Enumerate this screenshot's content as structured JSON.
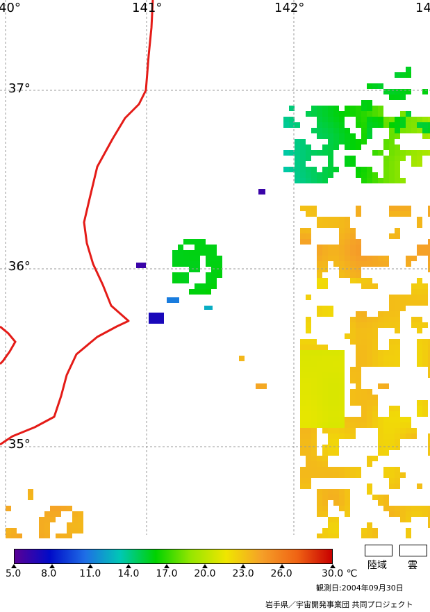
{
  "map": {
    "longitude_labels": [
      {
        "text": "40°",
        "lon": 140.0
      },
      {
        "text": "141°",
        "lon": 141.0
      },
      {
        "text": "142°",
        "lon": 142.0
      },
      {
        "text": "14",
        "lon": 142.8
      }
    ],
    "latitude_labels": [
      {
        "text": "37°",
        "lat": 37.0
      },
      {
        "text": "36°",
        "lat": 36.0
      },
      {
        "text": "35°",
        "lat": 35.0
      }
    ],
    "coastline_color": "#e41b17",
    "grid_color": "#999999",
    "cloud_color": "#ffffff",
    "land_color": "#ffffff"
  },
  "colorbar": {
    "unit": "℃",
    "min": 5.0,
    "max": 30.0,
    "ticks": [
      "5.0",
      "8.0",
      "11.0",
      "14.0",
      "17.0",
      "20.0",
      "23.0",
      "26.0",
      "30.0"
    ],
    "colors": [
      "#5a0096",
      "#000bc8",
      "#1e6ee6",
      "#00c8b4",
      "#00d200",
      "#96e600",
      "#f0e600",
      "#f5a028",
      "#f06414",
      "#c80000"
    ]
  },
  "legend": {
    "land_label": "陸域",
    "cloud_label": "雲"
  },
  "observation_date": "観測日:2004年09月30日",
  "credit": "岩手県／宇宙開発事業団 共同プロジェクト"
}
